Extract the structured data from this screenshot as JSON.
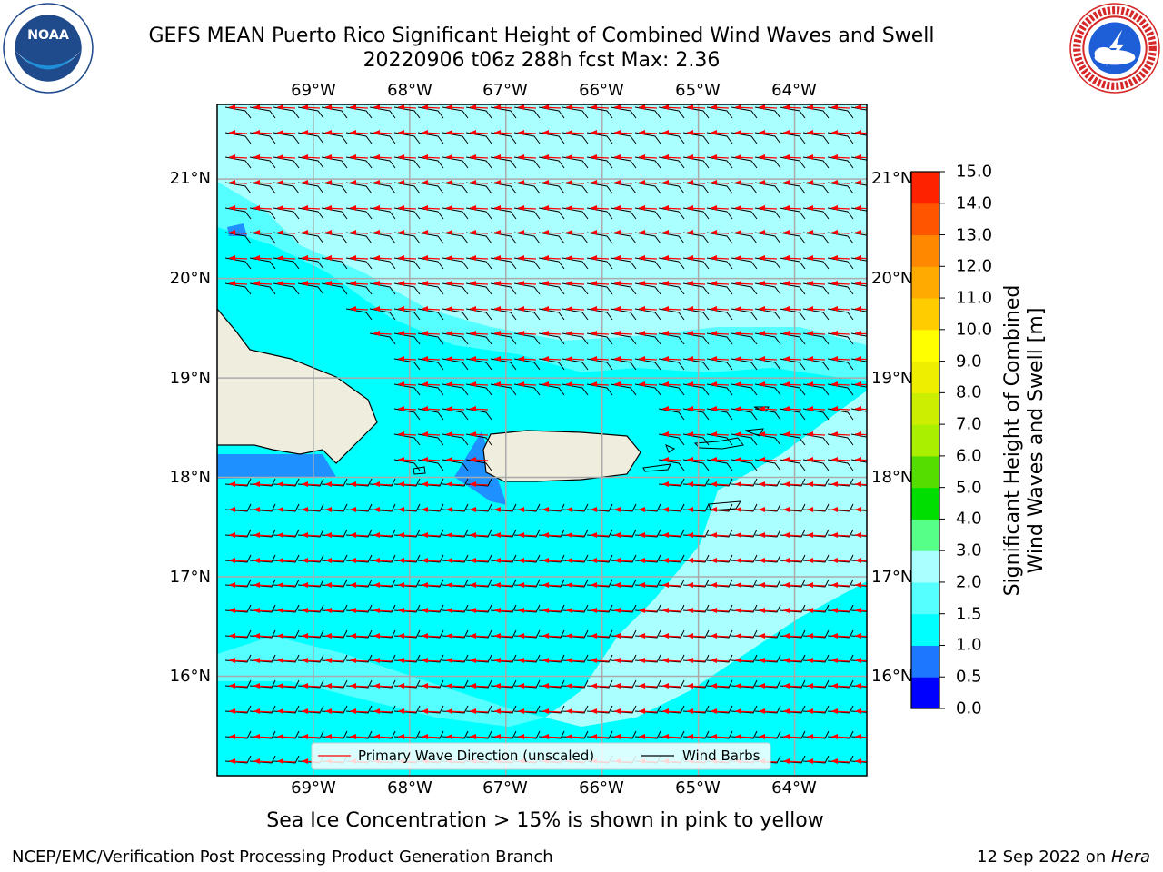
{
  "header": {
    "title_line1": "GEFS MEAN Puerto Rico Significant Height of Combined Wind Waves and Swell",
    "title_line2": "20220906 t06z 288h fcst   Max: 2.36"
  },
  "logos": {
    "noaa": {
      "icon": "noaa-logo-icon",
      "text": "NOAA",
      "ring_text_top": "NATIONAL OCEANIC AND ATMOSPHERIC ADMINISTRATION",
      "ring_text_bottom": "U.S. DEPARTMENT OF COMMERCE"
    },
    "nws": {
      "icon": "nws-logo-icon",
      "ring_text": "NATIONAL WEATHER SERVICE"
    }
  },
  "map": {
    "lon_labels": [
      "69°W",
      "68°W",
      "67°W",
      "66°W",
      "65°W",
      "64°W"
    ],
    "lat_labels": [
      "21°N",
      "20°N",
      "19°N",
      "18°N",
      "17°N",
      "16°N"
    ],
    "colors": {
      "land": "#efedde",
      "ocean_main": "#00ffff",
      "ocean_light": "#55ffff",
      "ocean_pale": "#aaffff",
      "ocean_blue": "#1e90ff",
      "wave_arrow": "#ff0000",
      "wind_barb": "#000000"
    },
    "legend": {
      "wave_label": "Primary Wave Direction (unscaled)",
      "barb_label": "Wind Barbs"
    }
  },
  "colorbar": {
    "title_line1": "Significant Height of Combined",
    "title_line2": "Wind Waves and Swell [m]",
    "tick_labels": [
      "0.0",
      "0.5",
      "1.0",
      "1.5",
      "2.0",
      "3.0",
      "4.0",
      "5.0",
      "6.0",
      "7.0",
      "8.0",
      "9.0",
      "10.0",
      "11.0",
      "12.0",
      "13.0",
      "14.0",
      "15.0"
    ],
    "colors": [
      "#0000ff",
      "#1e78ff",
      "#00ffff",
      "#55ffff",
      "#aaffff",
      "#55ff88",
      "#00dd00",
      "#55dd00",
      "#aaee00",
      "#ccee00",
      "#eeee00",
      "#ffff00",
      "#ffcc00",
      "#ffaa00",
      "#ff8800",
      "#ff5500",
      "#ff2200",
      "#ff0000"
    ]
  },
  "footer": {
    "sea_ice_note": "Sea Ice Concentration > 15% is shown in pink to yellow",
    "credit": "NCEP/EMC/Verification Post Processing Product Generation Branch",
    "date_prefix": "12 Sep 2022 on ",
    "host": "Hera"
  },
  "chart_data": {
    "type": "heatmap",
    "variable": "Significant Height of Combined Wind Waves and Swell [m]",
    "lon_ticks": [
      -69,
      -68,
      -67,
      -66,
      -65,
      -64
    ],
    "lat_ticks": [
      21,
      20,
      19,
      18,
      17,
      16
    ],
    "lon_range": [
      -70,
      -63.25
    ],
    "lat_range": [
      15,
      21.75
    ],
    "colorbar_bounds": [
      0.0,
      0.5,
      1.0,
      1.5,
      2.0,
      3.0,
      4.0,
      5.0,
      6.0,
      7.0,
      8.0,
      9.0,
      10.0,
      11.0,
      12.0,
      13.0,
      14.0,
      15.0
    ],
    "max_value": 2.36,
    "wave_direction": "westward",
    "wind_barbs": "easterly"
  }
}
